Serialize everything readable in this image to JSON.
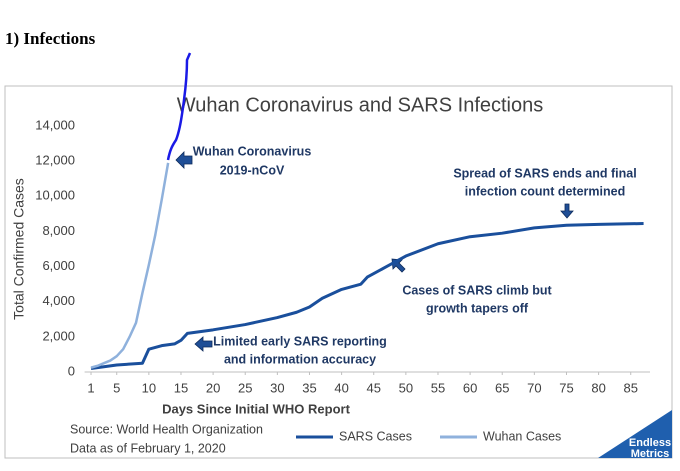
{
  "header": "1) Infections",
  "chart_data": {
    "type": "line",
    "title": "Wuhan Coronavirus and SARS Infections",
    "x_label": "Days Since Initial WHO Report",
    "y_label": "Total Confirmed Cases",
    "xlim": [
      0,
      88
    ],
    "xticks": [
      1,
      5,
      10,
      15,
      20,
      25,
      30,
      35,
      40,
      45,
      50,
      55,
      60,
      65,
      70,
      75,
      80,
      85
    ],
    "ylim": [
      0,
      14000
    ],
    "yticks": [
      0,
      {
        "value": 2000,
        "label": "2,000"
      },
      {
        "value": 4000,
        "label": "4,000"
      },
      {
        "value": 6000,
        "label": "6,000"
      },
      {
        "value": 8000,
        "label": "8,000"
      },
      {
        "value": 10000,
        "label": "10,000"
      },
      {
        "value": 12000,
        "label": "12,000"
      },
      {
        "value": 14000,
        "label": "14,000"
      }
    ],
    "series": [
      {
        "name": "SARS Cases",
        "color": "#1a4f9c",
        "width": 3,
        "x": [
          1,
          5,
          9,
          10,
          12,
          14,
          15,
          16,
          20,
          25,
          30,
          33,
          35,
          37,
          40,
          43,
          44,
          47,
          50,
          55,
          60,
          65,
          70,
          75,
          80,
          87
        ],
        "values": [
          200,
          400,
          500,
          1300,
          1500,
          1600,
          1800,
          2200,
          2400,
          2700,
          3100,
          3400,
          3700,
          4200,
          4700,
          5000,
          5400,
          6000,
          6600,
          7300,
          7700,
          7900,
          8200,
          8350,
          8400,
          8450
        ]
      },
      {
        "name": "Wuhan Cases",
        "color": "#8fb1dc",
        "width": 2.5,
        "x": [
          1,
          2,
          3,
          4,
          5,
          6,
          7,
          8,
          9,
          10,
          11,
          12,
          13
        ],
        "values": [
          250,
          350,
          500,
          650,
          900,
          1300,
          2000,
          2800,
          4500,
          6100,
          7800,
          9800,
          11900
        ]
      }
    ],
    "annotations": [
      [
        "Wuhan Coronavirus",
        "2019-nCoV"
      ],
      [
        "Spread of SARS ends and final",
        "infection count determined"
      ],
      [
        "Cases of SARS climb but",
        "growth tapers off"
      ],
      [
        "Limited early SARS reporting",
        "and information accuracy"
      ]
    ],
    "source": [
      "Source: World Health Organization",
      "Data as of February 1, 2020"
    ],
    "logo": [
      "Endless",
      "Metrics"
    ]
  }
}
